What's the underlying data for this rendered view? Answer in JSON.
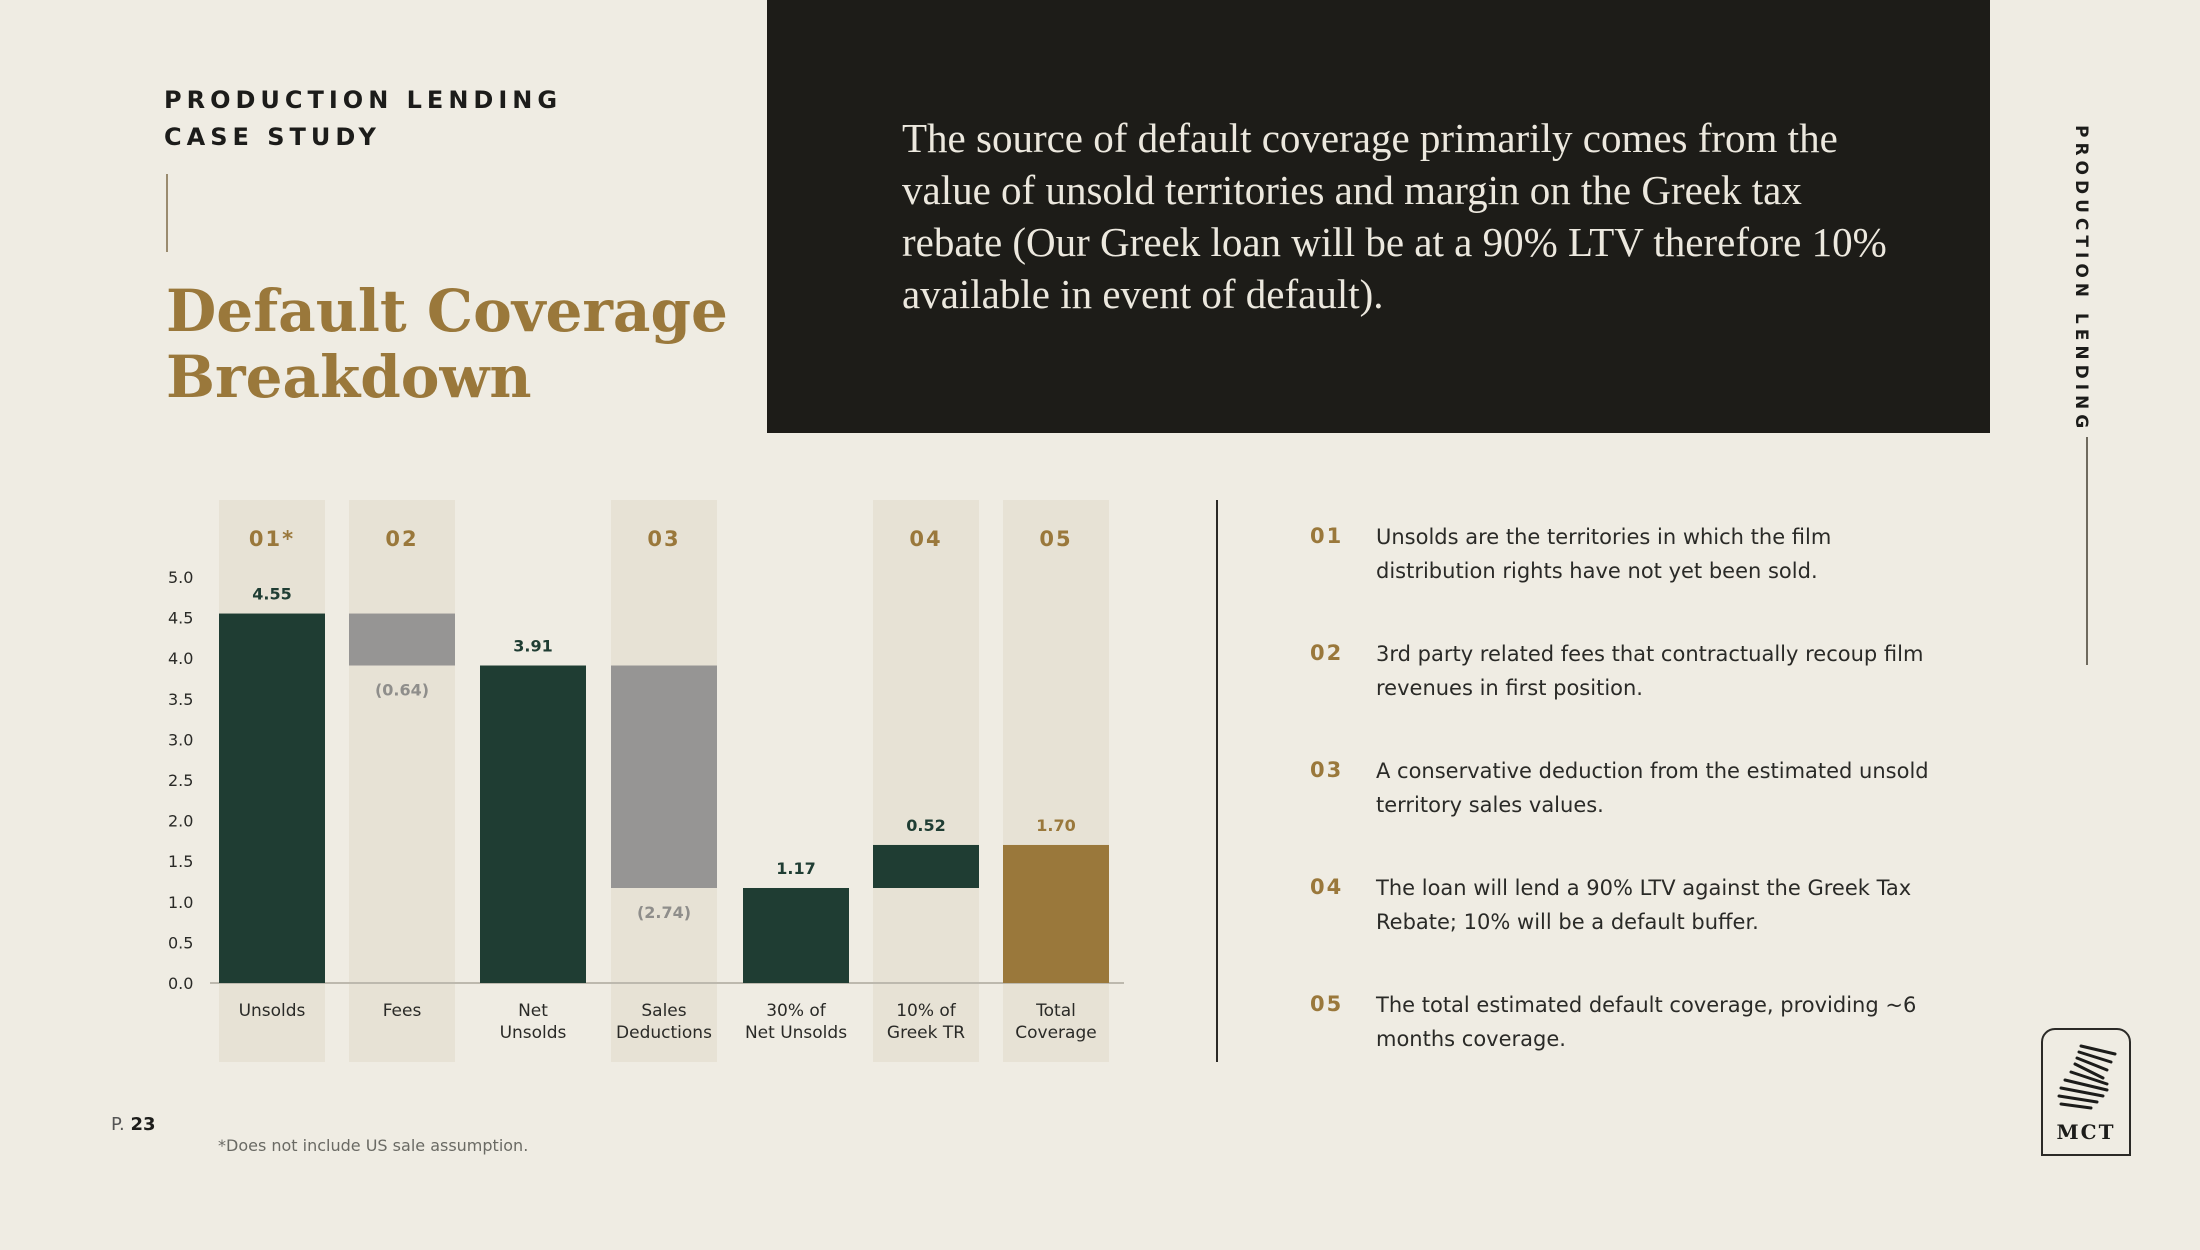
{
  "header": {
    "eyebrow_line1": "PRODUCTION LENDING",
    "eyebrow_line2": "CASE STUDY",
    "title_line1": "Default Coverage",
    "title_line2": "Breakdown"
  },
  "callout": "The source of default coverage primarily comes from the value of unsold territories and margin on the Greek tax rebate (Our Greek loan will be at a 90% LTV therefore 10% available in event of default).",
  "side_label": "PRODUCTION LENDING",
  "chart_data": {
    "type": "bar",
    "subtype": "waterfall",
    "ylim": [
      0,
      5.0
    ],
    "yticks": [
      "0.0",
      "0.5",
      "1.0",
      "1.5",
      "2.0",
      "2.5",
      "3.0",
      "3.5",
      "4.0",
      "4.5",
      "5.0"
    ],
    "bars": [
      {
        "category": [
          "Unsolds"
        ],
        "marker": "01*",
        "base": 0,
        "top": 4.55,
        "label": "4.55",
        "kind": "total"
      },
      {
        "category": [
          "Fees"
        ],
        "marker": "02",
        "base": 3.91,
        "top": 4.55,
        "label": "(0.64)",
        "kind": "decrease"
      },
      {
        "category": [
          "Net",
          "Unsolds"
        ],
        "marker": "",
        "base": 0,
        "top": 3.91,
        "label": "3.91",
        "kind": "total"
      },
      {
        "category": [
          "Sales",
          "Deductions"
        ],
        "marker": "03",
        "base": 1.17,
        "top": 3.91,
        "label": "(2.74)",
        "kind": "decrease"
      },
      {
        "category": [
          "30% of",
          "Net Unsolds"
        ],
        "marker": "",
        "base": 0,
        "top": 1.17,
        "label": "1.17",
        "kind": "total"
      },
      {
        "category": [
          "10% of",
          "Greek TR"
        ],
        "marker": "04",
        "base": 1.17,
        "top": 1.7,
        "label": "0.52",
        "kind": "increase"
      },
      {
        "category": [
          "Total",
          "Coverage"
        ],
        "marker": "05",
        "base": 0,
        "top": 1.7,
        "label": "1.70",
        "kind": "result"
      }
    ],
    "colors": {
      "total": "#1f3d33",
      "decrease": "#969594",
      "increase": "#1f3d33",
      "result": "#9a783b",
      "column_bg": "#e7e2d5",
      "marker": "#9a783b"
    }
  },
  "notes": [
    {
      "num": "01",
      "text": "Unsolds are the territories in which the film distribution rights have not yet been sold."
    },
    {
      "num": "02",
      "text": "3rd party related fees that contractually recoup film revenues in first position."
    },
    {
      "num": "03",
      "text": "A conservative deduction from the estimated unsold territory sales values."
    },
    {
      "num": "04",
      "text": "The loan will lend a 90% LTV against the Greek Tax Rebate; 10% will be a default buffer."
    },
    {
      "num": "05",
      "text": "The total estimated default coverage, providing ~6 months coverage."
    }
  ],
  "footer": {
    "page_prefix": "P.",
    "page_number": "23",
    "footnote": "*Does not include US sale assumption."
  },
  "logo": {
    "text": "MCT"
  }
}
